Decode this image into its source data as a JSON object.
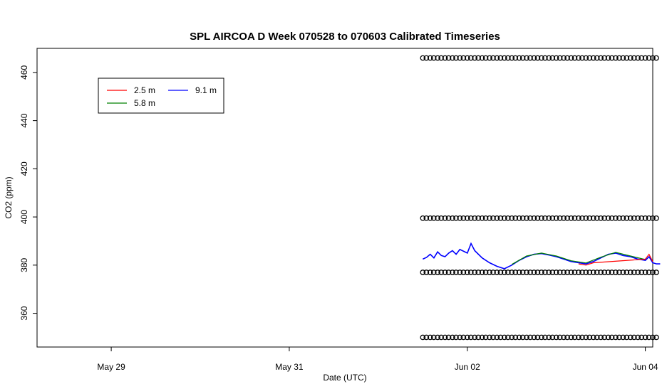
{
  "chart_data": {
    "type": "line",
    "title": "SPL AIRCOA D  Week 070528 to 070603  Calibrated Timeseries",
    "xlabel": "Date (UTC)",
    "ylabel": "CO2 (ppm)",
    "xlim": [
      "2007-05-28T04:00",
      "2007-06-04T02:00"
    ],
    "ylim": [
      346,
      470
    ],
    "x_ticks": [
      {
        "date": "2007-05-29",
        "label": "May 29"
      },
      {
        "date": "2007-05-31",
        "label": "May 31"
      },
      {
        "date": "2007-06-02",
        "label": "Jun 02"
      },
      {
        "date": "2007-06-04",
        "label": "Jun 04"
      }
    ],
    "y_ticks": [
      360,
      380,
      400,
      420,
      440,
      460
    ],
    "legend": {
      "placement": "top-left",
      "entries": [
        {
          "label": "2.5 m",
          "color": "#ff0000"
        },
        {
          "label": "5.8 m",
          "color": "#008000"
        },
        {
          "label": "9.1 m",
          "color": "#0000ff"
        }
      ]
    },
    "series": [
      {
        "name": "9.1 m",
        "color": "#0000ff",
        "points": [
          [
            "2007-06-01T12:00",
            382.5
          ],
          [
            "2007-06-01T13:00",
            383.2
          ],
          [
            "2007-06-01T14:00",
            384.5
          ],
          [
            "2007-06-01T15:00",
            383.0
          ],
          [
            "2007-06-01T16:00",
            385.5
          ],
          [
            "2007-06-01T17:00",
            384.0
          ],
          [
            "2007-06-01T18:00",
            383.5
          ],
          [
            "2007-06-01T19:00",
            385.0
          ],
          [
            "2007-06-01T20:00",
            386.0
          ],
          [
            "2007-06-01T21:00",
            384.5
          ],
          [
            "2007-06-01T22:00",
            386.5
          ],
          [
            "2007-06-02T00:00",
            385.0
          ],
          [
            "2007-06-02T01:00",
            389.0
          ],
          [
            "2007-06-02T02:00",
            386.0
          ],
          [
            "2007-06-02T04:00",
            383.0
          ],
          [
            "2007-06-02T06:00",
            381.0
          ],
          [
            "2007-06-02T08:00",
            379.5
          ],
          [
            "2007-06-02T10:00",
            378.5
          ],
          [
            "2007-06-02T12:00",
            380.0
          ],
          [
            "2007-06-02T14:00",
            382.0
          ],
          [
            "2007-06-02T16:00",
            383.5
          ],
          [
            "2007-06-02T18:00",
            384.5
          ],
          [
            "2007-06-02T20:00",
            384.8
          ],
          [
            "2007-06-02T22:00",
            384.2
          ],
          [
            "2007-06-03T00:00",
            383.5
          ],
          [
            "2007-06-03T02:00",
            382.5
          ],
          [
            "2007-06-03T04:00",
            381.5
          ],
          [
            "2007-06-03T06:00",
            381.0
          ],
          [
            "2007-06-03T08:00",
            380.5
          ],
          [
            "2007-06-03T10:00",
            381.5
          ],
          [
            "2007-06-03T12:00",
            383.0
          ],
          [
            "2007-06-03T14:00",
            384.5
          ],
          [
            "2007-06-03T16:00",
            385.0
          ],
          [
            "2007-06-03T18:00",
            384.0
          ],
          [
            "2007-06-03T20:00",
            383.5
          ],
          [
            "2007-06-03T22:00",
            382.5
          ],
          [
            "2007-06-04T00:00",
            382.0
          ],
          [
            "2007-06-04T01:00",
            383.5
          ],
          [
            "2007-06-04T02:00",
            381.0
          ],
          [
            "2007-06-04T03:00",
            380.5
          ],
          [
            "2007-06-04T04:00",
            380.5
          ]
        ]
      },
      {
        "name": "5.8 m",
        "color": "#008000",
        "points": [
          [
            "2007-06-02T12:00",
            380.3
          ],
          [
            "2007-06-02T16:00",
            383.8
          ],
          [
            "2007-06-02T20:00",
            385.0
          ],
          [
            "2007-06-03T00:00",
            383.8
          ],
          [
            "2007-06-03T04:00",
            381.8
          ],
          [
            "2007-06-03T08:00",
            380.9
          ],
          [
            "2007-06-03T12:00",
            383.3
          ],
          [
            "2007-06-03T16:00",
            385.3
          ],
          [
            "2007-06-03T20:00",
            383.8
          ],
          [
            "2007-06-04T00:00",
            382.3
          ]
        ]
      },
      {
        "name": "2.5 m",
        "color": "#ff0000",
        "points": [
          [
            "2007-06-03T06:00",
            380.5
          ],
          [
            "2007-06-03T08:00",
            380.0
          ],
          [
            "2007-06-03T10:00",
            381.0
          ],
          [
            "2007-06-04T00:00",
            382.5
          ],
          [
            "2007-06-04T01:00",
            384.5
          ],
          [
            "2007-06-04T02:00",
            381.5
          ]
        ]
      }
    ],
    "calibration_points": {
      "x_start": "2007-06-01T12:00",
      "x_end": "2007-06-04T02:00",
      "count": 32,
      "levels": [
        466,
        399.5,
        377,
        350
      ]
    }
  }
}
